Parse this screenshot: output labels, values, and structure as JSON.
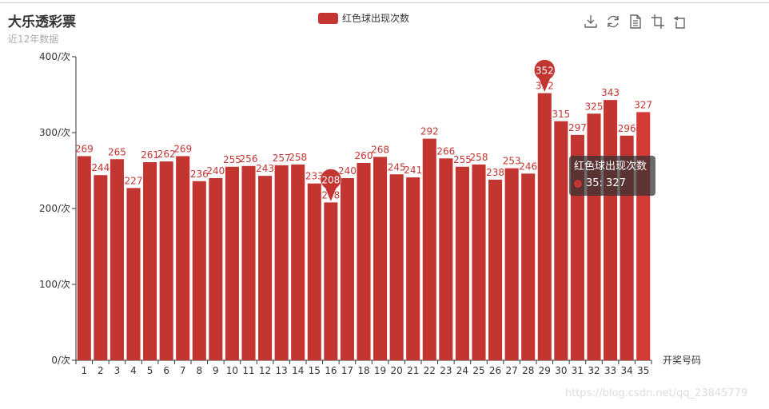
{
  "title": "大乐透彩票",
  "subtitle": "近12年数据",
  "legend": {
    "label": "红色球出现次数",
    "color": "#c23531"
  },
  "toolbox": [
    {
      "name": "save-as-image-icon"
    },
    {
      "name": "restore-icon"
    },
    {
      "name": "data-view-icon"
    },
    {
      "name": "data-zoom-icon"
    },
    {
      "name": "data-zoom-back-icon"
    }
  ],
  "tooltip": {
    "series": "红色球出现次数",
    "item": "35: 327"
  },
  "watermark": "https://blog.csdn.net/qq_23845779",
  "chart_data": {
    "type": "bar",
    "title": "大乐透彩票",
    "subtitle": "近12年数据",
    "xlabel": "开奖号码",
    "ylabel": "",
    "ylim": [
      0,
      400
    ],
    "yticks": [
      "0/次",
      "100/次",
      "200/次",
      "300/次",
      "400/次"
    ],
    "categories": [
      "1",
      "2",
      "3",
      "4",
      "5",
      "6",
      "7",
      "8",
      "9",
      "10",
      "11",
      "12",
      "13",
      "14",
      "15",
      "16",
      "17",
      "18",
      "19",
      "20",
      "21",
      "22",
      "23",
      "24",
      "25",
      "26",
      "27",
      "28",
      "29",
      "30",
      "31",
      "32",
      "33",
      "34",
      "35"
    ],
    "series": [
      {
        "name": "红色球出现次数",
        "color": "#c23531",
        "highlight_color": "#d63a36",
        "values": [
          269,
          244,
          265,
          227,
          261,
          262,
          269,
          236,
          240,
          255,
          256,
          243,
          257,
          258,
          233,
          208,
          240,
          260,
          268,
          245,
          241,
          292,
          266,
          255,
          258,
          238,
          253,
          246,
          352,
          315,
          297,
          325,
          343,
          296,
          327
        ]
      }
    ],
    "mark_points": [
      {
        "label": "352",
        "category": "29",
        "value": 352
      },
      {
        "label": "208",
        "category": "16",
        "value": 208
      }
    ],
    "highlighted_category": "35",
    "legend_position": "top-center",
    "grid": false
  }
}
